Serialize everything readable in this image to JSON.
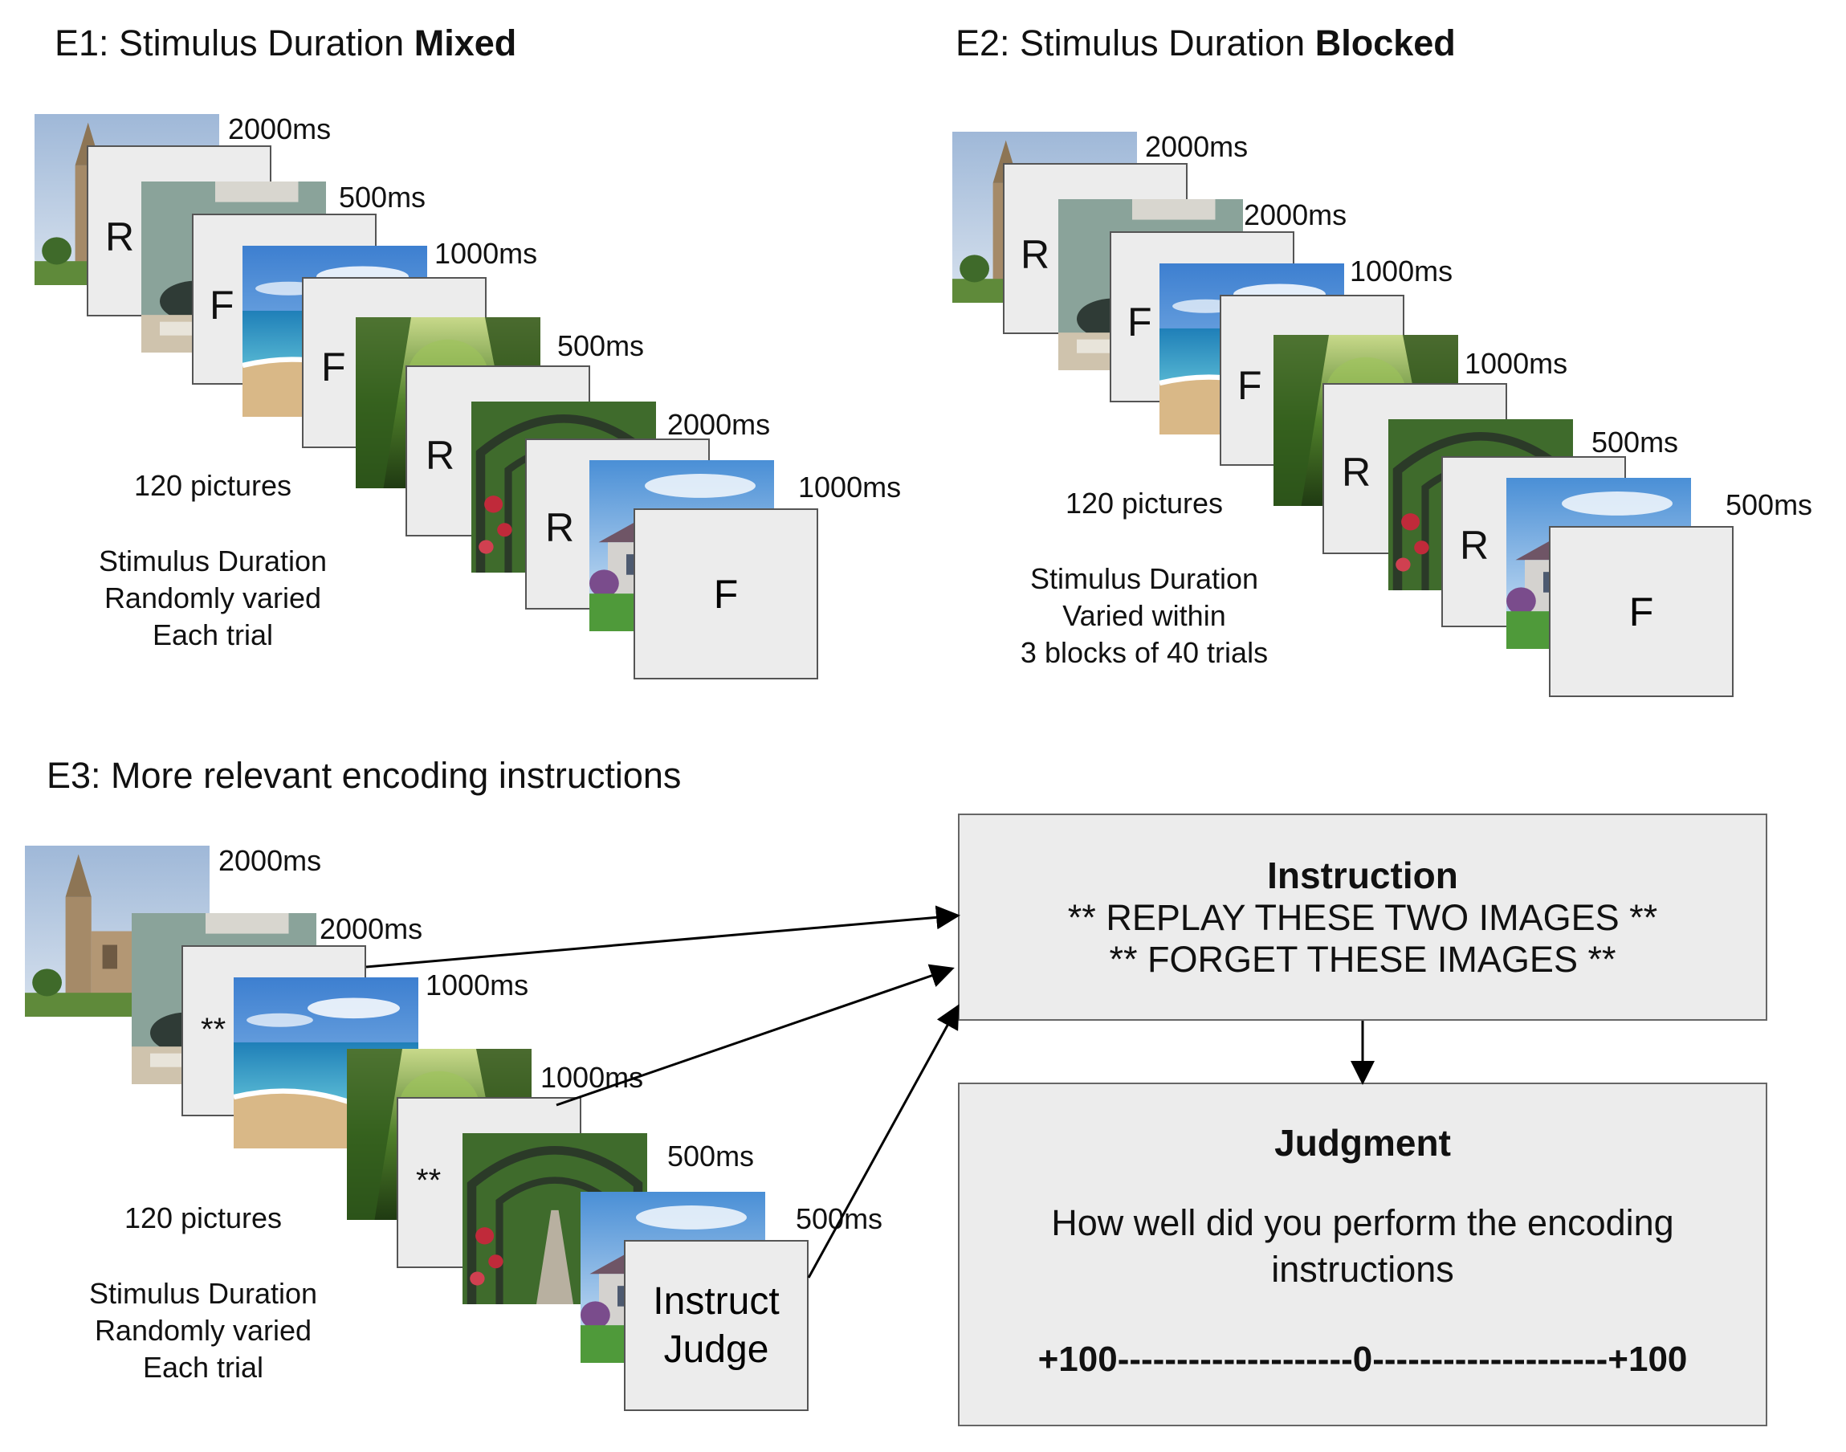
{
  "e1": {
    "title_prefix": "E1: Stimulus Duration ",
    "title_bold": "Mixed",
    "durations": [
      "2000ms",
      "500ms",
      "1000ms",
      "500ms",
      "2000ms",
      "1000ms"
    ],
    "letters": [
      "R",
      "F",
      "F",
      "R",
      "R",
      "F"
    ],
    "count": "120 pictures",
    "note": [
      "Stimulus Duration",
      "Randomly varied",
      "Each trial"
    ]
  },
  "e2": {
    "title_prefix": "E2: Stimulus Duration ",
    "title_bold": "Blocked",
    "durations": [
      "2000ms",
      "2000ms",
      "1000ms",
      "1000ms",
      "500ms",
      "500ms"
    ],
    "letters": [
      "R",
      "F",
      "F",
      "R",
      "R",
      "F"
    ],
    "count": "120 pictures",
    "note": [
      "Stimulus Duration",
      "Varied within",
      "3 blocks of 40 trials"
    ]
  },
  "e3": {
    "title": "E3: More relevant encoding instructions",
    "durations": [
      "2000ms",
      "2000ms",
      "1000ms",
      "1000ms",
      "500ms",
      "500ms"
    ],
    "marks": [
      "**",
      "**"
    ],
    "final_frame": [
      "Instruct",
      "Judge"
    ],
    "count": "120 pictures",
    "note": [
      "Stimulus Duration",
      "Randomly varied",
      "Each trial"
    ]
  },
  "instruction_box": {
    "heading": "Instruction",
    "lines": [
      "** REPLAY THESE TWO IMAGES **",
      "** FORGET THESE IMAGES **"
    ]
  },
  "judgment_box": {
    "heading": "Judgment",
    "question": [
      "How well did you perform the encoding",
      "instructions"
    ],
    "scale": "+100--------------------0--------------------+100"
  }
}
